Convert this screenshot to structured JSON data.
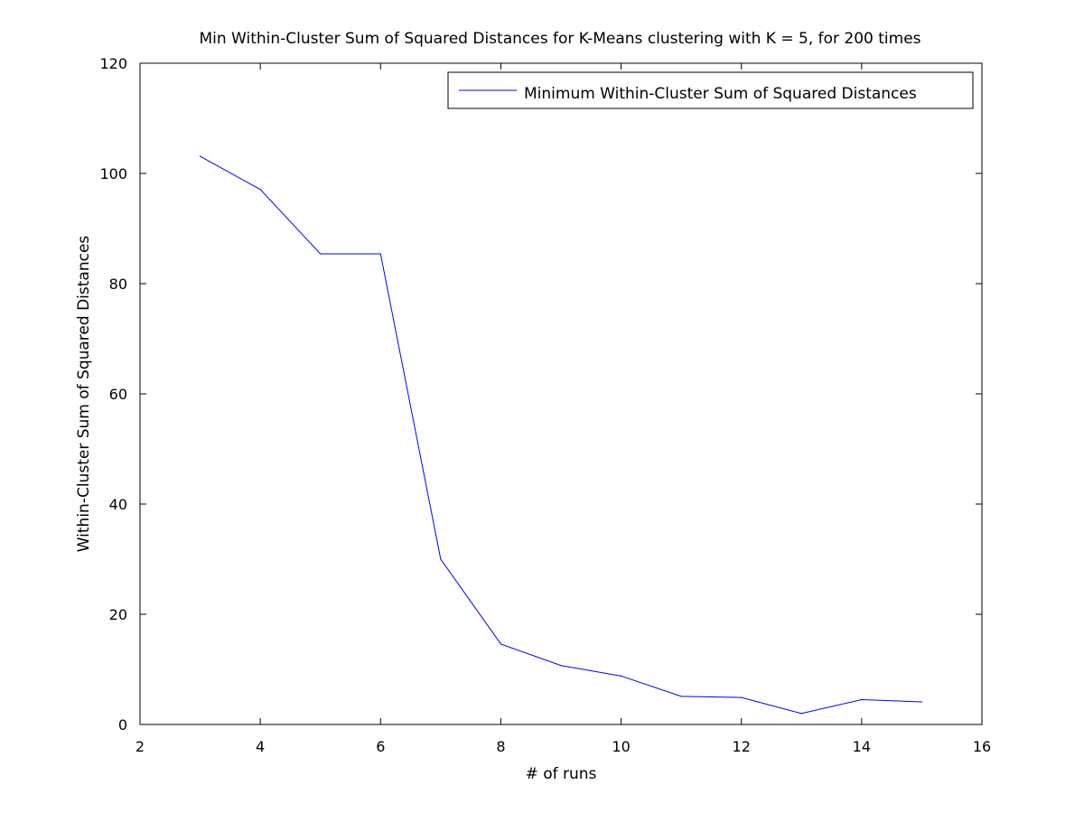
{
  "chart_data": {
    "type": "line",
    "title": "Min Within-Cluster Sum of Squared Distances for K-Means clustering with K = 5, for 200 times",
    "xlabel": "# of runs",
    "ylabel": "Within-Cluster Sum of Squared Distances",
    "xlim": [
      2,
      16
    ],
    "ylim": [
      0,
      120
    ],
    "xticks": [
      2,
      4,
      6,
      8,
      10,
      12,
      14,
      16
    ],
    "yticks": [
      0,
      20,
      40,
      60,
      80,
      100,
      120
    ],
    "grid": false,
    "legend_position": "top-right",
    "series": [
      {
        "name": "Minimum Within-Cluster Sum of Squared Distances",
        "color": "#0000ff",
        "x": [
          3,
          4,
          5,
          6,
          7,
          8,
          9,
          10,
          11,
          12,
          13,
          14,
          15
        ],
        "y": [
          103.1,
          97.1,
          85.4,
          85.4,
          30.0,
          14.6,
          10.7,
          8.8,
          5.1,
          4.9,
          2.0,
          4.5,
          4.1
        ]
      }
    ]
  }
}
